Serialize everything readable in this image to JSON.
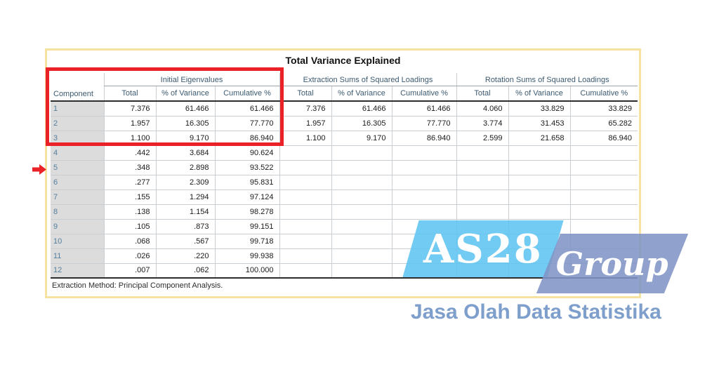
{
  "title": "Total Variance Explained",
  "table": {
    "component_header": "Component",
    "sections": [
      {
        "label": "Initial Eigenvalues"
      },
      {
        "label": "Extraction Sums of Squared Loadings"
      },
      {
        "label": "Rotation Sums of Squared Loadings"
      }
    ],
    "sub_headers": [
      "Total",
      "% of Variance",
      "Cumulative %"
    ],
    "rows": [
      {
        "component": "1",
        "values": [
          "7.376",
          "61.466",
          "61.466",
          "7.376",
          "61.466",
          "61.466",
          "4.060",
          "33.829",
          "33.829"
        ]
      },
      {
        "component": "2",
        "values": [
          "1.957",
          "16.305",
          "77.770",
          "1.957",
          "16.305",
          "77.770",
          "3.774",
          "31.453",
          "65.282"
        ]
      },
      {
        "component": "3",
        "values": [
          "1.100",
          "9.170",
          "86.940",
          "1.100",
          "9.170",
          "86.940",
          "2.599",
          "21.658",
          "86.940"
        ]
      },
      {
        "component": "4",
        "values": [
          ".442",
          "3.684",
          "90.624",
          "",
          "",
          "",
          "",
          "",
          ""
        ]
      },
      {
        "component": "5",
        "values": [
          ".348",
          "2.898",
          "93.522",
          "",
          "",
          "",
          "",
          "",
          ""
        ]
      },
      {
        "component": "6",
        "values": [
          ".277",
          "2.309",
          "95.831",
          "",
          "",
          "",
          "",
          "",
          ""
        ]
      },
      {
        "component": "7",
        "values": [
          ".155",
          "1.294",
          "97.124",
          "",
          "",
          "",
          "",
          "",
          ""
        ]
      },
      {
        "component": "8",
        "values": [
          ".138",
          "1.154",
          "98.278",
          "",
          "",
          "",
          "",
          "",
          ""
        ]
      },
      {
        "component": "9",
        "values": [
          ".105",
          ".873",
          "99.151",
          "",
          "",
          "",
          "",
          "",
          ""
        ]
      },
      {
        "component": "10",
        "values": [
          ".068",
          ".567",
          "99.718",
          "",
          "",
          "",
          "",
          "",
          ""
        ]
      },
      {
        "component": "11",
        "values": [
          ".026",
          ".220",
          "99.938",
          "",
          "",
          "",
          "",
          "",
          ""
        ]
      },
      {
        "component": "12",
        "values": [
          ".007",
          ".062",
          "100.000",
          "",
          "",
          "",
          "",
          "",
          ""
        ]
      }
    ],
    "footnote": "Extraction Method: Principal Component Analysis."
  },
  "annotations": {
    "highlight_color": "#ea2227",
    "arrow_color": "#ea2227",
    "highlighted_rows": "1-3",
    "arrow_points_to_component": "5"
  },
  "watermark": {
    "brand_primary": "AS28",
    "brand_secondary": "Group",
    "tagline": "Jasa Olah Data Statistika",
    "colors": {
      "light_blue": "#5fc4f0",
      "dark_blue": "#8094c5",
      "tagline_text": "#7e9ecb",
      "frame_border": "#f6e3a1"
    }
  }
}
